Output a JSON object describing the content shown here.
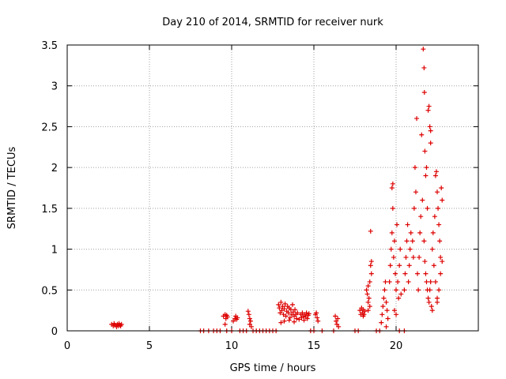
{
  "chart_data": {
    "type": "scatter",
    "title": "Day 210 of 2014, SRMTID for receiver nurk",
    "xlabel": "GPS time / hours",
    "ylabel": "SRMTID / TECUs",
    "xlim": [
      0,
      25
    ],
    "ylim": [
      0,
      3.5
    ],
    "xticks": [
      0,
      5,
      10,
      15,
      20
    ],
    "yticks": [
      0,
      0.5,
      1,
      1.5,
      2,
      2.5,
      3,
      3.5
    ],
    "xtick_labels": [
      "0",
      "5",
      "10",
      "15",
      "20"
    ],
    "ytick_labels": [
      "0",
      "0.5",
      "1",
      "1.5",
      "2",
      "2.5",
      "3",
      "3.5"
    ],
    "grid": true,
    "marker": "+",
    "marker_color": "#dd0000",
    "series": [
      {
        "name": "SRMTID",
        "points": [
          [
            2.7,
            0.08
          ],
          [
            2.8,
            0.06
          ],
          [
            2.85,
            0.09
          ],
          [
            2.9,
            0.07
          ],
          [
            3.0,
            0.05
          ],
          [
            3.05,
            0.08
          ],
          [
            3.1,
            0.06
          ],
          [
            3.15,
            0.09
          ],
          [
            3.2,
            0.07
          ],
          [
            3.25,
            0.06
          ],
          [
            3.3,
            0.08
          ],
          [
            8.1,
            0.0
          ],
          [
            8.3,
            0.0
          ],
          [
            8.6,
            0.0
          ],
          [
            8.9,
            0.0
          ],
          [
            9.1,
            0.0
          ],
          [
            9.3,
            0.0
          ],
          [
            9.5,
            0.18
          ],
          [
            9.6,
            0.2
          ],
          [
            9.65,
            0.15
          ],
          [
            9.7,
            0.19
          ],
          [
            9.75,
            0.17
          ],
          [
            9.6,
            0.08
          ],
          [
            9.7,
            0.0
          ],
          [
            10.0,
            0.0
          ],
          [
            10.1,
            0.12
          ],
          [
            10.2,
            0.15
          ],
          [
            10.25,
            0.18
          ],
          [
            10.3,
            0.14
          ],
          [
            10.35,
            0.16
          ],
          [
            10.5,
            0.0
          ],
          [
            10.7,
            0.0
          ],
          [
            10.9,
            0.0
          ],
          [
            11.0,
            0.24
          ],
          [
            11.05,
            0.2
          ],
          [
            11.1,
            0.15
          ],
          [
            11.15,
            0.12
          ],
          [
            11.1,
            0.08
          ],
          [
            11.2,
            0.05
          ],
          [
            11.3,
            0.0
          ],
          [
            11.5,
            0.0
          ],
          [
            11.7,
            0.0
          ],
          [
            11.9,
            0.0
          ],
          [
            12.1,
            0.0
          ],
          [
            12.3,
            0.0
          ],
          [
            12.5,
            0.0
          ],
          [
            12.7,
            0.0
          ],
          [
            12.85,
            0.32
          ],
          [
            12.9,
            0.28
          ],
          [
            12.95,
            0.22
          ],
          [
            13.0,
            0.35
          ],
          [
            13.05,
            0.25
          ],
          [
            13.1,
            0.3
          ],
          [
            13.15,
            0.2
          ],
          [
            13.2,
            0.27
          ],
          [
            13.25,
            0.33
          ],
          [
            13.3,
            0.18
          ],
          [
            13.35,
            0.24
          ],
          [
            13.4,
            0.3
          ],
          [
            13.45,
            0.22
          ],
          [
            13.5,
            0.28
          ],
          [
            13.55,
            0.16
          ],
          [
            13.6,
            0.26
          ],
          [
            13.65,
            0.2
          ],
          [
            13.7,
            0.32
          ],
          [
            13.75,
            0.23
          ],
          [
            13.8,
            0.18
          ],
          [
            13.85,
            0.26
          ],
          [
            13.9,
            0.2
          ],
          [
            13.95,
            0.15
          ],
          [
            14.0,
            0.22
          ],
          [
            13.0,
            0.1
          ],
          [
            13.2,
            0.12
          ],
          [
            13.5,
            0.13
          ],
          [
            13.8,
            0.11
          ],
          [
            14.1,
            0.14
          ],
          [
            14.2,
            0.2
          ],
          [
            14.25,
            0.16
          ],
          [
            14.3,
            0.22
          ],
          [
            14.35,
            0.18
          ],
          [
            14.4,
            0.13
          ],
          [
            14.45,
            0.2
          ],
          [
            14.5,
            0.17
          ],
          [
            14.55,
            0.22
          ],
          [
            14.6,
            0.15
          ],
          [
            14.65,
            0.19
          ],
          [
            14.7,
            0.21
          ],
          [
            14.8,
            0.0
          ],
          [
            15.0,
            0.0
          ],
          [
            15.1,
            0.2
          ],
          [
            15.15,
            0.22
          ],
          [
            15.2,
            0.16
          ],
          [
            15.25,
            0.12
          ],
          [
            15.5,
            0.0
          ],
          [
            16.2,
            0.0
          ],
          [
            16.3,
            0.18
          ],
          [
            16.35,
            0.12
          ],
          [
            16.4,
            0.08
          ],
          [
            16.45,
            0.15
          ],
          [
            16.5,
            0.05
          ],
          [
            17.5,
            0.0
          ],
          [
            17.7,
            0.0
          ],
          [
            17.8,
            0.25
          ],
          [
            17.85,
            0.2
          ],
          [
            17.9,
            0.28
          ],
          [
            17.95,
            0.22
          ],
          [
            18.0,
            0.26
          ],
          [
            18.05,
            0.2
          ],
          [
            18.1,
            0.24
          ],
          [
            18.0,
            0.18
          ],
          [
            18.2,
            0.5
          ],
          [
            18.25,
            0.45
          ],
          [
            18.3,
            0.55
          ],
          [
            18.35,
            0.4
          ],
          [
            18.4,
            0.6
          ],
          [
            18.3,
            0.35
          ],
          [
            18.4,
            0.3
          ],
          [
            18.5,
            0.85
          ],
          [
            18.45,
            0.8
          ],
          [
            18.45,
            1.22
          ],
          [
            18.5,
            0.7
          ],
          [
            18.3,
            0.25
          ],
          [
            18.8,
            0.0
          ],
          [
            19.0,
            0.0
          ],
          [
            19.1,
            0.1
          ],
          [
            19.15,
            0.2
          ],
          [
            19.2,
            0.3
          ],
          [
            19.25,
            0.4
          ],
          [
            19.3,
            0.5
          ],
          [
            19.35,
            0.6
          ],
          [
            19.4,
            0.35
          ],
          [
            19.45,
            0.25
          ],
          [
            19.5,
            0.15
          ],
          [
            19.4,
            0.05
          ],
          [
            19.6,
            0.6
          ],
          [
            19.65,
            0.8
          ],
          [
            19.7,
            1.0
          ],
          [
            19.75,
            1.2
          ],
          [
            19.75,
            1.75
          ],
          [
            19.8,
            1.8
          ],
          [
            19.8,
            1.5
          ],
          [
            19.85,
            0.9
          ],
          [
            19.9,
            1.1
          ],
          [
            19.95,
            0.7
          ],
          [
            20.0,
            0.5
          ],
          [
            20.05,
            1.3
          ],
          [
            20.1,
            0.6
          ],
          [
            20.15,
            0.4
          ],
          [
            20.2,
            0.8
          ],
          [
            20.25,
            1.0
          ],
          [
            20.3,
            0.45
          ],
          [
            19.9,
            0.25
          ],
          [
            20.0,
            0.2
          ],
          [
            20.2,
            0.0
          ],
          [
            20.5,
            0.0
          ],
          [
            20.5,
            0.5
          ],
          [
            20.55,
            0.7
          ],
          [
            20.6,
            0.9
          ],
          [
            20.65,
            1.1
          ],
          [
            20.7,
            1.3
          ],
          [
            20.75,
            0.6
          ],
          [
            20.8,
            0.8
          ],
          [
            20.85,
            1.0
          ],
          [
            20.9,
            1.2
          ],
          [
            21.0,
            1.1
          ],
          [
            21.05,
            0.9
          ],
          [
            21.1,
            1.5
          ],
          [
            21.15,
            2.0
          ],
          [
            21.2,
            1.7
          ],
          [
            21.25,
            2.6
          ],
          [
            21.3,
            0.7
          ],
          [
            21.35,
            0.5
          ],
          [
            21.4,
            0.9
          ],
          [
            21.45,
            1.2
          ],
          [
            21.5,
            1.4
          ],
          [
            21.55,
            2.4
          ],
          [
            21.6,
            1.6
          ],
          [
            21.65,
            3.45
          ],
          [
            21.7,
            3.22
          ],
          [
            21.72,
            2.92
          ],
          [
            21.75,
            2.2
          ],
          [
            21.8,
            1.9
          ],
          [
            21.85,
            2.0
          ],
          [
            21.9,
            1.5
          ],
          [
            21.95,
            2.7
          ],
          [
            22.0,
            2.75
          ],
          [
            22.05,
            2.5
          ],
          [
            22.1,
            2.45
          ],
          [
            22.1,
            2.3
          ],
          [
            21.7,
            1.1
          ],
          [
            21.75,
            0.85
          ],
          [
            21.8,
            0.7
          ],
          [
            21.85,
            0.6
          ],
          [
            21.9,
            0.5
          ],
          [
            21.95,
            0.4
          ],
          [
            22.0,
            0.35
          ],
          [
            22.05,
            0.5
          ],
          [
            22.1,
            0.6
          ],
          [
            22.15,
            0.3
          ],
          [
            22.2,
            0.25
          ],
          [
            22.2,
            1.0
          ],
          [
            22.25,
            1.2
          ],
          [
            22.3,
            0.8
          ],
          [
            22.35,
            1.4
          ],
          [
            22.4,
            1.9
          ],
          [
            22.45,
            1.95
          ],
          [
            22.5,
            1.7
          ],
          [
            22.55,
            1.5
          ],
          [
            22.6,
            1.3
          ],
          [
            22.65,
            1.1
          ],
          [
            22.7,
            0.9
          ],
          [
            22.75,
            1.75
          ],
          [
            22.8,
            1.6
          ],
          [
            22.4,
            0.6
          ],
          [
            22.5,
            0.4
          ],
          [
            22.6,
            0.5
          ],
          [
            22.7,
            0.7
          ],
          [
            22.8,
            0.85
          ],
          [
            22.5,
            0.35
          ]
        ]
      }
    ]
  }
}
